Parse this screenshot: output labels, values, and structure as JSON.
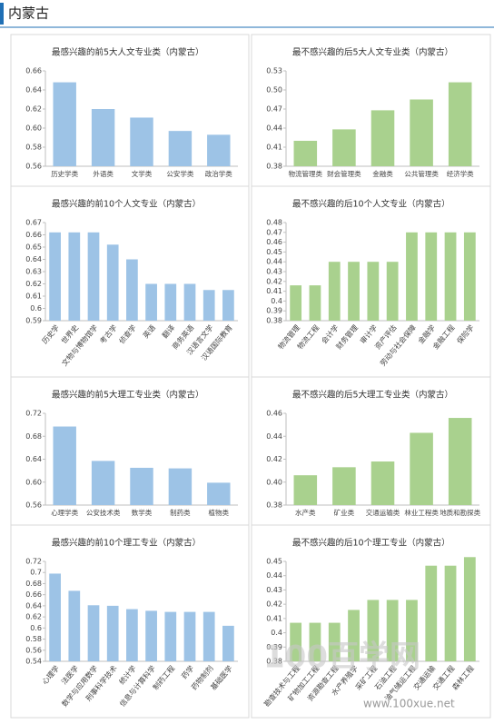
{
  "header": {
    "title": "内蒙古"
  },
  "chart_data": [
    {
      "type": "bar",
      "title": "最感兴趣的前5大人文专业类（内蒙古）",
      "color": "#9dc3e6",
      "grid": false,
      "categories": [
        "历史学类",
        "外语类",
        "文学类",
        "公安学类",
        "政治学类"
      ],
      "values": [
        0.648,
        0.62,
        0.611,
        0.597,
        0.593
      ],
      "ylim": [
        0.56,
        0.66
      ],
      "yticks": [
        0.56,
        0.58,
        {
          "value": 0.6,
          "label": "0.60"
        },
        0.62,
        0.64,
        0.66
      ]
    },
    {
      "type": "bar",
      "title": "最不感兴趣的后5大人文专业类（内蒙古）",
      "color": "#a9d18e",
      "grid": false,
      "categories": [
        "物流管理类",
        "财会管理类",
        "金融类",
        "公共管理类",
        "经济学类"
      ],
      "values": [
        0.42,
        0.438,
        0.468,
        0.485,
        0.512
      ],
      "ylim": [
        0.38,
        0.53
      ],
      "yticks": [
        0.38,
        0.41,
        0.44,
        0.47,
        {
          "value": 0.5,
          "label": "0.50"
        },
        0.53
      ]
    },
    {
      "type": "bar",
      "title": "最感兴趣的前10个人文专业（内蒙古）",
      "color": "#9dc3e6",
      "grid": false,
      "categories": [
        "历史学",
        "世界史",
        "文物与博物馆学",
        "考古学",
        "侦查学",
        "英语",
        "翻译",
        "商务英语",
        "汉语言文学",
        "汉语国际教育"
      ],
      "values": [
        0.662,
        0.662,
        0.662,
        0.652,
        0.64,
        0.62,
        0.62,
        0.62,
        0.615,
        0.615
      ],
      "ylim": [
        0.59,
        0.67
      ],
      "yticks": [
        0.59,
        0.6,
        0.61,
        0.62,
        0.63,
        0.64,
        0.65,
        0.66,
        0.67
      ]
    },
    {
      "type": "bar",
      "title": "最不感兴趣的后10个人文专业（内蒙古）",
      "color": "#a9d18e",
      "grid": false,
      "categories": [
        "物流管理",
        "物流工程",
        "会计学",
        "财务管理",
        "审计学",
        "资产评估",
        "劳动与社会保障",
        "金融学",
        "金融工程",
        "保险学"
      ],
      "values": [
        0.416,
        0.416,
        0.44,
        0.44,
        0.44,
        0.44,
        0.47,
        0.47,
        0.47,
        0.47
      ],
      "ylim": [
        0.38,
        0.48
      ],
      "yticks": [
        0.38,
        0.39,
        0.4,
        0.41,
        0.42,
        0.43,
        0.44,
        0.45,
        0.46,
        0.47,
        0.48
      ]
    },
    {
      "type": "bar",
      "title": "最感兴趣的前5大理工专业类（内蒙古）",
      "color": "#9dc3e6",
      "grid": false,
      "categories": [
        "心理学类",
        "公安技术类",
        "数学类",
        "制药类",
        "植物类"
      ],
      "values": [
        0.697,
        0.637,
        0.625,
        0.624,
        0.599
      ],
      "ylim": [
        0.56,
        0.72
      ],
      "yticks": [
        0.56,
        {
          "value": 0.6,
          "label": "0.60"
        },
        0.64,
        0.68,
        0.72
      ]
    },
    {
      "type": "bar",
      "title": "最不感兴趣的后5大理工专业类（内蒙古）",
      "color": "#a9d18e",
      "grid": false,
      "categories": [
        "水产类",
        "矿业类",
        "交通运输类",
        "林业工程类",
        "地质和勘探类"
      ],
      "values": [
        0.406,
        0.413,
        0.418,
        0.443,
        0.456
      ],
      "ylim": [
        0.38,
        0.46
      ],
      "yticks": [
        0.38,
        {
          "value": 0.4,
          "label": "0.40"
        },
        0.42,
        0.44,
        0.46
      ]
    },
    {
      "type": "bar",
      "title": "最感兴趣的前10个理工专业（内蒙古）",
      "color": "#9dc3e6",
      "grid": false,
      "categories": [
        "心理学",
        "法医学",
        "数学与应用数学",
        "刑事科学技术",
        "统计学",
        "信息与计算科学",
        "制药工程",
        "药学",
        "药物制剂",
        "基础医学"
      ],
      "values": [
        0.698,
        0.667,
        0.641,
        0.64,
        0.634,
        0.631,
        0.629,
        0.629,
        0.629,
        0.604
      ],
      "ylim": [
        0.54,
        0.72
      ],
      "yticks": [
        0.54,
        0.56,
        0.58,
        0.6,
        0.62,
        0.64,
        0.66,
        0.68,
        0.7,
        0.72
      ]
    },
    {
      "type": "bar",
      "title": "最不感兴趣的后10个理工专业（内蒙古）",
      "color": "#a9d18e",
      "grid": false,
      "categories": [
        "勘查技术与工程",
        "矿物加工工程",
        "资源勘查工程",
        "水产养殖学",
        "采矿工程",
        "石油工程",
        "油气储运工程",
        "交通运输",
        "交通工程",
        "森林工程"
      ],
      "values": [
        0.407,
        0.407,
        0.407,
        0.416,
        0.423,
        0.423,
        0.423,
        0.447,
        0.447,
        0.453
      ],
      "ylim": [
        0.38,
        0.45
      ],
      "yticks": [
        0.38,
        0.39,
        0.4,
        0.41,
        0.42,
        0.43,
        0.44,
        0.45
      ]
    }
  ],
  "watermark": {
    "logo": "100百学网",
    "url": "www.100xue.net"
  }
}
